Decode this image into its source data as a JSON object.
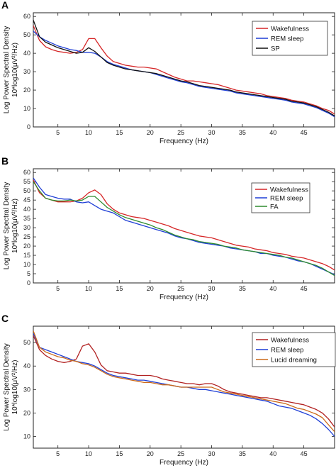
{
  "chart_data": [
    {
      "type": "line",
      "panel_label": "A",
      "xlabel": "Frequency (Hz)",
      "ylabel": "Log Power Spectral Density",
      "ylabel_line2": "10*log10(μV²/Hz)",
      "xlim": [
        1,
        50
      ],
      "ylim": [
        0,
        62
      ],
      "xticks": [
        5,
        10,
        15,
        20,
        25,
        30,
        35,
        40,
        45
      ],
      "yticks": [
        0,
        10,
        20,
        30,
        40,
        50,
        60
      ],
      "legend_position": "top-right",
      "series": [
        {
          "name": "Wakefulness",
          "color": "#d62728",
          "x": [
            1,
            2,
            3,
            4,
            5,
            6,
            7,
            8,
            9,
            10,
            11,
            12,
            13,
            14,
            15,
            16,
            17,
            18,
            19,
            20,
            21,
            22,
            23,
            24,
            25,
            26,
            27,
            28,
            29,
            30,
            31,
            32,
            33,
            34,
            35,
            36,
            37,
            38,
            39,
            40,
            41,
            42,
            43,
            44,
            45,
            46,
            47,
            48,
            49,
            50
          ],
          "y": [
            55,
            47,
            43.5,
            42,
            41,
            40.5,
            40,
            40.5,
            42,
            48,
            48,
            43,
            38.5,
            35.5,
            34.5,
            33.5,
            33,
            32.5,
            32.5,
            32,
            31.5,
            30,
            28.5,
            27,
            26,
            25,
            25,
            24.5,
            24,
            23.5,
            23,
            22,
            21,
            20,
            19.5,
            19,
            18.5,
            18,
            17,
            16.5,
            16,
            15.5,
            14.5,
            14,
            13.5,
            12.5,
            11.5,
            10,
            9,
            7
          ]
        },
        {
          "name": "REM sleep",
          "color": "#1f3fd6",
          "x": [
            1,
            2,
            3,
            4,
            5,
            6,
            7,
            8,
            9,
            10,
            11,
            12,
            13,
            14,
            15,
            16,
            17,
            18,
            19,
            20,
            21,
            22,
            23,
            24,
            25,
            26,
            27,
            28,
            29,
            30,
            31,
            32,
            33,
            34,
            35,
            36,
            37,
            38,
            39,
            40,
            41,
            42,
            43,
            44,
            45,
            46,
            47,
            48,
            49,
            50
          ],
          "y": [
            52,
            49,
            47,
            45.5,
            44,
            43,
            42,
            41.5,
            40.5,
            40.5,
            40,
            38,
            35.5,
            34,
            33,
            32,
            31,
            30.5,
            30,
            29.5,
            28.5,
            27.5,
            26.5,
            25.5,
            24.5,
            24,
            23,
            22,
            21.5,
            21,
            20.5,
            20,
            19.5,
            18.5,
            18,
            17.5,
            17,
            16.5,
            16,
            15.5,
            15,
            14.5,
            13.5,
            13,
            12.5,
            11.5,
            10.5,
            9,
            7.5,
            5.5
          ]
        },
        {
          "name": "SP",
          "color": "#111111",
          "x": [
            1,
            2,
            3,
            4,
            5,
            6,
            7,
            8,
            9,
            10,
            11,
            12,
            13,
            14,
            15,
            16,
            17,
            18,
            19,
            20,
            21,
            22,
            23,
            24,
            25,
            26,
            27,
            28,
            29,
            30,
            31,
            32,
            33,
            34,
            35,
            36,
            37,
            38,
            39,
            40,
            41,
            42,
            43,
            44,
            45,
            46,
            47,
            48,
            49,
            50
          ],
          "y": [
            58,
            49,
            46,
            44.5,
            43,
            42,
            41,
            40,
            40.5,
            43,
            41,
            38,
            35,
            33.5,
            32.5,
            31.5,
            31,
            30.5,
            30,
            29.5,
            29,
            28,
            27,
            26,
            25,
            24.5,
            23.5,
            22.5,
            22,
            21.5,
            21,
            20.5,
            20,
            19,
            18.5,
            18,
            17.5,
            17,
            16.5,
            16,
            15.5,
            15,
            14,
            13.5,
            13,
            12,
            11,
            9.5,
            8,
            6
          ]
        }
      ]
    },
    {
      "type": "line",
      "panel_label": "B",
      "xlabel": "Frequency (Hz)",
      "ylabel": "Log Power Spectral Density",
      "ylabel_line2": "10*log10(μV²/Hz)",
      "xlim": [
        1,
        50
      ],
      "ylim": [
        0,
        62
      ],
      "xticks": [
        5,
        10,
        15,
        20,
        25,
        30,
        35,
        40,
        45
      ],
      "yticks": [
        0,
        5,
        10,
        15,
        20,
        25,
        30,
        35,
        40,
        45,
        50,
        55,
        60
      ],
      "legend_position": "right",
      "series": [
        {
          "name": "Wakefulness",
          "color": "#d62728",
          "x": [
            1,
            2,
            3,
            4,
            5,
            6,
            7,
            8,
            9,
            10,
            11,
            12,
            13,
            14,
            15,
            16,
            17,
            18,
            19,
            20,
            21,
            22,
            23,
            24,
            25,
            26,
            27,
            28,
            29,
            30,
            31,
            32,
            33,
            34,
            35,
            36,
            37,
            38,
            39,
            40,
            41,
            42,
            43,
            44,
            45,
            46,
            47,
            48,
            49,
            50
          ],
          "y": [
            56,
            49,
            46,
            45,
            44,
            44,
            44,
            44.5,
            46,
            49,
            50.5,
            48,
            43,
            40,
            38,
            37,
            36,
            35.5,
            35,
            34,
            33,
            32,
            31,
            29.5,
            28.5,
            27.5,
            26.5,
            25.5,
            25,
            24.5,
            23.5,
            22.5,
            21.5,
            20.5,
            20,
            19.5,
            18.5,
            18,
            17.5,
            16.5,
            16,
            15.5,
            14.5,
            14,
            13.5,
            12.5,
            11.5,
            10.5,
            9,
            7
          ]
        },
        {
          "name": "REM sleep",
          "color": "#1f3fd6",
          "x": [
            1,
            2,
            3,
            4,
            5,
            6,
            7,
            8,
            9,
            10,
            11,
            12,
            13,
            14,
            15,
            16,
            17,
            18,
            19,
            20,
            21,
            22,
            23,
            24,
            25,
            26,
            27,
            28,
            29,
            30,
            31,
            32,
            33,
            34,
            35,
            36,
            37,
            38,
            39,
            40,
            41,
            42,
            43,
            44,
            45,
            46,
            47,
            48,
            49,
            50
          ],
          "y": [
            57,
            52,
            48,
            47,
            46,
            45.5,
            45.5,
            44,
            43.5,
            44,
            42,
            40,
            39,
            38,
            36,
            34,
            33,
            32,
            31,
            30,
            29,
            28,
            27,
            25.5,
            24.5,
            24,
            23,
            22,
            21.5,
            21,
            20.5,
            20,
            19,
            18.5,
            18,
            17.5,
            17,
            16,
            16,
            15,
            14.5,
            14,
            13,
            12,
            11.5,
            10.5,
            9,
            7.5,
            6,
            4.5
          ]
        },
        {
          "name": "FA",
          "color": "#2e8b2e",
          "x": [
            1,
            2,
            3,
            4,
            5,
            6,
            7,
            8,
            9,
            10,
            11,
            12,
            13,
            14,
            15,
            16,
            17,
            18,
            19,
            20,
            21,
            22,
            23,
            24,
            25,
            26,
            27,
            28,
            29,
            30,
            31,
            32,
            33,
            34,
            35,
            36,
            37,
            38,
            39,
            40,
            41,
            42,
            43,
            44,
            45,
            46,
            47,
            48,
            49,
            50
          ],
          "y": [
            55,
            50,
            46,
            45,
            44.5,
            44.5,
            45,
            44.5,
            45,
            47,
            47,
            44,
            41,
            39,
            37,
            35.5,
            34.5,
            33.5,
            32.5,
            31.5,
            30,
            29,
            27.5,
            26,
            25,
            24,
            23.5,
            22.5,
            22,
            21.5,
            21,
            20,
            19.5,
            19,
            18,
            17.5,
            17,
            16.5,
            16,
            15.5,
            15,
            14,
            13.5,
            12.5,
            11.5,
            10.5,
            9.5,
            8,
            6,
            4
          ]
        }
      ]
    },
    {
      "type": "line",
      "panel_label": "C",
      "xlabel": "Frequency (Hz)",
      "ylabel": "Log Power Spectral Density",
      "ylabel_line2": "10*log10(μV²/Hz)",
      "xlim": [
        1,
        50
      ],
      "ylim": [
        5,
        57
      ],
      "xticks": [
        5,
        10,
        15,
        20,
        25,
        30,
        35,
        40,
        45
      ],
      "yticks": [
        10,
        20,
        30,
        40,
        50
      ],
      "legend_position": "top-right",
      "series": [
        {
          "name": "Wakefulness",
          "color": "#b22222",
          "x": [
            1,
            2,
            3,
            4,
            5,
            6,
            7,
            8,
            9,
            10,
            11,
            12,
            13,
            14,
            15,
            16,
            17,
            18,
            19,
            20,
            21,
            22,
            23,
            24,
            25,
            26,
            27,
            28,
            29,
            30,
            31,
            32,
            33,
            34,
            35,
            36,
            37,
            38,
            39,
            40,
            41,
            42,
            43,
            44,
            45,
            46,
            47,
            48,
            49,
            50
          ],
          "y": [
            53,
            47,
            44.5,
            43,
            42,
            41.5,
            42,
            43,
            48.5,
            49.5,
            46,
            40.5,
            38,
            37.5,
            37,
            37,
            36.5,
            36,
            36,
            36,
            35.5,
            34.5,
            34,
            33.5,
            33,
            32.5,
            32.5,
            32,
            32.5,
            32.5,
            31.5,
            30,
            29,
            28.5,
            28,
            27.5,
            27,
            26.5,
            26.5,
            26,
            25.5,
            25,
            24.5,
            24,
            23.5,
            22.5,
            21.5,
            20,
            17.5,
            14
          ]
        },
        {
          "name": "REM sleep",
          "color": "#1f3fd6",
          "x": [
            1,
            2,
            3,
            4,
            5,
            6,
            7,
            8,
            9,
            10,
            11,
            12,
            13,
            14,
            15,
            16,
            17,
            18,
            19,
            20,
            21,
            22,
            23,
            24,
            25,
            26,
            27,
            28,
            29,
            30,
            31,
            32,
            33,
            34,
            35,
            36,
            37,
            38,
            39,
            40,
            41,
            42,
            43,
            44,
            45,
            46,
            47,
            48,
            49,
            50
          ],
          "y": [
            54,
            48,
            47,
            46,
            45,
            44,
            43,
            42,
            41.5,
            41,
            40,
            38.5,
            37,
            36,
            35.5,
            35,
            34.5,
            34,
            34,
            33.5,
            33,
            32.5,
            32,
            31.5,
            31,
            31,
            30.5,
            30,
            30,
            29.5,
            29,
            28.5,
            28,
            27.5,
            27,
            26.5,
            26,
            25.5,
            25,
            24,
            23,
            22.5,
            22,
            21,
            20,
            19,
            17.5,
            15.5,
            13,
            10
          ]
        },
        {
          "name": "Lucid dreaming",
          "color": "#cc6a1a",
          "x": [
            1,
            2,
            3,
            4,
            5,
            6,
            7,
            8,
            9,
            10,
            11,
            12,
            13,
            14,
            15,
            16,
            17,
            18,
            19,
            20,
            21,
            22,
            23,
            24,
            25,
            26,
            27,
            28,
            29,
            30,
            31,
            32,
            33,
            34,
            35,
            36,
            37,
            38,
            39,
            40,
            41,
            42,
            43,
            44,
            45,
            46,
            47,
            48,
            49,
            50
          ],
          "y": [
            55,
            48,
            46,
            45,
            44,
            43.5,
            42.5,
            42,
            41,
            40.5,
            39.5,
            38,
            36.5,
            35.5,
            35,
            34.5,
            34,
            33.5,
            33,
            33,
            32.5,
            32,
            32,
            31.5,
            31,
            31,
            31,
            31,
            31,
            31,
            30,
            29,
            28.5,
            28,
            27.5,
            27,
            26.5,
            26,
            25.5,
            25,
            24.5,
            24,
            23,
            22,
            21.5,
            20.5,
            19.5,
            18,
            15,
            12
          ]
        }
      ]
    }
  ]
}
